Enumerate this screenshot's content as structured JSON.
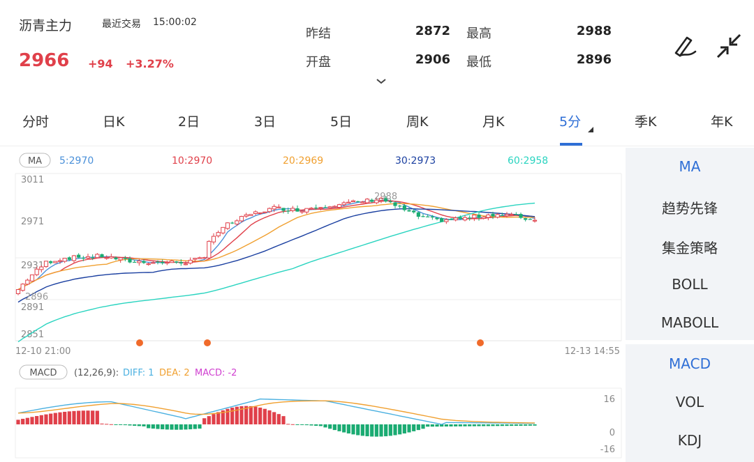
{
  "header": {
    "title": "沥青主力",
    "recent_label": "最近交易",
    "time": "15:00:02",
    "price": "2966",
    "change": "+94",
    "change_pct": "+3.27%",
    "stats": [
      {
        "label": "昨结",
        "value": "2872"
      },
      {
        "label": "最高",
        "value": "2988"
      },
      {
        "label": "开盘",
        "value": "2906"
      },
      {
        "label": "最低",
        "value": "2896"
      }
    ],
    "icons": [
      "draw-pen-icon",
      "collapse-arrows-icon",
      "chevron-down-icon"
    ]
  },
  "tabs": [
    {
      "label": "分时"
    },
    {
      "label": "日K"
    },
    {
      "label": "2日"
    },
    {
      "label": "3日"
    },
    {
      "label": "5日"
    },
    {
      "label": "周K"
    },
    {
      "label": "月K"
    },
    {
      "label": "5分",
      "active": true
    },
    {
      "label": "季K"
    },
    {
      "label": "年K"
    }
  ],
  "main_chart": {
    "badge": "MA",
    "legend": [
      {
        "label": "5:2970",
        "color": "#4a90d9"
      },
      {
        "label": "10:2970",
        "color": "#e0404a"
      },
      {
        "label": "20:2969",
        "color": "#f0a030"
      },
      {
        "label": "30:2973",
        "color": "#1a3fa0"
      },
      {
        "label": "60:2958",
        "color": "#2ad4c0"
      }
    ],
    "y_ticks": [
      "3011",
      "2971",
      "2931",
      "2891",
      "2851"
    ],
    "high_label": "2988",
    "low_label": "2896",
    "x_start": "12-10 21:00",
    "x_end": "12-13 14:55"
  },
  "macd_chart": {
    "badge": "MACD",
    "params": "(12,26,9):",
    "diff": "DIFF: 1",
    "dea": "DEA: 2",
    "macd": "MACD: -2",
    "diff_color": "#4ab0e0",
    "dea_color": "#f0a030",
    "macd_color": "#d040d0",
    "y_ticks": [
      "16",
      "0",
      "-16"
    ]
  },
  "right_panel": {
    "main_items": [
      {
        "label": "MA",
        "active": true
      },
      {
        "label": "趋势先锋"
      },
      {
        "label": "集金策略"
      },
      {
        "label": "BOLL"
      },
      {
        "label": "MABOLL"
      }
    ],
    "sub_items": [
      {
        "label": "MACD",
        "active": true
      },
      {
        "label": "VOL"
      },
      {
        "label": "KDJ"
      }
    ]
  },
  "colors": {
    "up": "#e0404a",
    "down": "#1aab72",
    "accent": "#2f6fd6",
    "marker": "#f06a2a"
  },
  "chart_data": [
    {
      "type": "candlestick",
      "title": "",
      "ylim": [
        2851,
        3011
      ],
      "y_ticks": [
        3011,
        2971,
        2931,
        2891,
        2851
      ],
      "x_range": [
        "12-10 21:00",
        "12-13 14:55"
      ],
      "high": 2988,
      "low": 2896,
      "ma_latest": {
        "MA5": 2970,
        "MA10": 2970,
        "MA20": 2969,
        "MA30": 2973,
        "MA60": 2958
      }
    },
    {
      "type": "bar",
      "title": "MACD (12,26,9)",
      "ylim": [
        -16,
        16
      ],
      "latest": {
        "DIFF": 1,
        "DEA": 2,
        "MACD": -2
      }
    }
  ]
}
